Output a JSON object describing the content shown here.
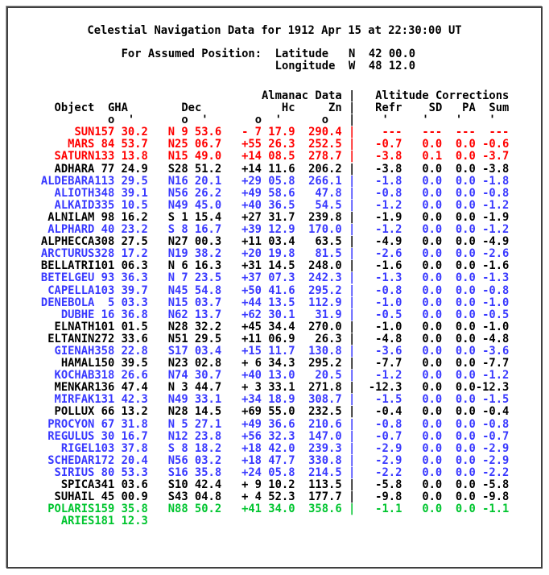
{
  "window": {
    "title": "Celestial Navigation Data for 1912 Apr 15 at 22:30:00 UT"
  },
  "assumed_position": {
    "label": "For Assumed Position:",
    "latitude_label": "Latitude",
    "latitude_value": "N  42 00.0",
    "longitude_label": "Longitude",
    "longitude_value": "W  48 12.0"
  },
  "colors": {
    "red": "#ff0000",
    "blue": "#3939ff",
    "green": "#00c52f",
    "black": "#000000"
  },
  "table": {
    "group_left": "Almanac Data",
    "group_right": "Altitude Corrections",
    "bar": "|",
    "header_cells": [
      "Object",
      "  GHA   ",
      "     Dec   ",
      "         Hc",
      "     Zn",
      "|",
      "   Refr",
      "    SD",
      "   PA",
      "  Sum"
    ],
    "units_cells": [
      "",
      "  o  '  ",
      "     o  '  ",
      "     o  '  ",
      "    o  ",
      "|",
      "    '  ",
      "   '  ",
      "  '  ",
      "  '  "
    ],
    "rows": [
      {
        "name": "SUN",
        "gha": "157 30.2",
        "dec": "N 9 53.6",
        "hc": "- 7 17.9",
        "zn": "290.4",
        "bar": "|",
        "refr": "---",
        "sd": "---",
        "pa": "---",
        "sum": "---",
        "color": "red"
      },
      {
        "name": "MARS",
        "gha": "84 53.7",
        "dec": "N25 06.7",
        "hc": "+55 26.3",
        "zn": "252.5",
        "bar": "|",
        "refr": "-0.7",
        "sd": "0.0",
        "pa": "0.0",
        "sum": "-0.6",
        "color": "red"
      },
      {
        "name": "SATURN",
        "gha": "133 13.8",
        "dec": "N15 49.0",
        "hc": "+14 08.5",
        "zn": "278.7",
        "bar": "|",
        "refr": "-3.8",
        "sd": "0.1",
        "pa": "0.0",
        "sum": "-3.7",
        "color": "red"
      },
      {
        "name": "ADHARA",
        "gha": "77 24.9",
        "dec": "S28 51.2",
        "hc": "+14 11.6",
        "zn": "206.2",
        "bar": "|",
        "refr": "-3.8",
        "sd": "0.0",
        "pa": "0.0",
        "sum": "-3.8",
        "color": "black"
      },
      {
        "name": "ALDEBARA",
        "gha": "113 29.5",
        "dec": "N16 20.1",
        "hc": "+29 05.8",
        "zn": "266.1",
        "bar": "|",
        "refr": "-1.8",
        "sd": "0.0",
        "pa": "0.0",
        "sum": "-1.8",
        "color": "blue"
      },
      {
        "name": "ALIOTH",
        "gha": "348 39.1",
        "dec": "N56 26.2",
        "hc": "+49 58.6",
        "zn": "47.8",
        "bar": "|",
        "refr": "-0.8",
        "sd": "0.0",
        "pa": "0.0",
        "sum": "-0.8",
        "color": "blue"
      },
      {
        "name": "ALKAID",
        "gha": "335 10.5",
        "dec": "N49 45.0",
        "hc": "+40 36.5",
        "zn": "54.5",
        "bar": "|",
        "refr": "-1.2",
        "sd": "0.0",
        "pa": "0.0",
        "sum": "-1.2",
        "color": "blue"
      },
      {
        "name": "ALNILAM",
        "gha": "98 16.2",
        "dec": "S 1 15.4",
        "hc": "+27 31.7",
        "zn": "239.8",
        "bar": "|",
        "refr": "-1.9",
        "sd": "0.0",
        "pa": "0.0",
        "sum": "-1.9",
        "color": "black"
      },
      {
        "name": "ALPHARD",
        "gha": "40 23.2",
        "dec": "S 8 16.7",
        "hc": "+39 12.9",
        "zn": "170.0",
        "bar": "|",
        "refr": "-1.2",
        "sd": "0.0",
        "pa": "0.0",
        "sum": "-1.2",
        "color": "blue"
      },
      {
        "name": "ALPHECCA",
        "gha": "308 27.5",
        "dec": "N27 00.3",
        "hc": "+11 03.4",
        "zn": "63.5",
        "bar": "|",
        "refr": "-4.9",
        "sd": "0.0",
        "pa": "0.0",
        "sum": "-4.9",
        "color": "black"
      },
      {
        "name": "ARCTURUS",
        "gha": "328 17.2",
        "dec": "N19 38.2",
        "hc": "+20 19.8",
        "zn": "81.5",
        "bar": "|",
        "refr": "-2.6",
        "sd": "0.0",
        "pa": "0.0",
        "sum": "-2.6",
        "color": "blue"
      },
      {
        "name": "BELLATRI",
        "gha": "101 06.3",
        "dec": "N 6 16.3",
        "hc": "+31 14.5",
        "zn": "248.0",
        "bar": "|",
        "refr": "-1.6",
        "sd": "0.0",
        "pa": "0.0",
        "sum": "-1.6",
        "color": "black"
      },
      {
        "name": "BETELGEU",
        "gha": "93 36.3",
        "dec": "N 7 23.5",
        "hc": "+37 07.3",
        "zn": "242.3",
        "bar": "|",
        "refr": "-1.3",
        "sd": "0.0",
        "pa": "0.0",
        "sum": "-1.3",
        "color": "blue"
      },
      {
        "name": "CAPELLA",
        "gha": "103 39.7",
        "dec": "N45 54.8",
        "hc": "+50 41.6",
        "zn": "295.2",
        "bar": "|",
        "refr": "-0.8",
        "sd": "0.0",
        "pa": "0.0",
        "sum": "-0.8",
        "color": "blue"
      },
      {
        "name": "DENEBOLA",
        "gha": "5 03.3",
        "dec": "N15 03.7",
        "hc": "+44 13.5",
        "zn": "112.9",
        "bar": "|",
        "refr": "-1.0",
        "sd": "0.0",
        "pa": "0.0",
        "sum": "-1.0",
        "color": "blue"
      },
      {
        "name": "DUBHE",
        "gha": "16 36.8",
        "dec": "N62 13.7",
        "hc": "+62 30.1",
        "zn": "31.9",
        "bar": "|",
        "refr": "-0.5",
        "sd": "0.0",
        "pa": "0.0",
        "sum": "-0.5",
        "color": "blue"
      },
      {
        "name": "ELNATH",
        "gha": "101 01.5",
        "dec": "N28 32.2",
        "hc": "+45 34.4",
        "zn": "270.0",
        "bar": "|",
        "refr": "-1.0",
        "sd": "0.0",
        "pa": "0.0",
        "sum": "-1.0",
        "color": "black"
      },
      {
        "name": "ELTANIN",
        "gha": "272 33.6",
        "dec": "N51 29.5",
        "hc": "+11 06.9",
        "zn": "26.3",
        "bar": "|",
        "refr": "-4.8",
        "sd": "0.0",
        "pa": "0.0",
        "sum": "-4.8",
        "color": "black"
      },
      {
        "name": "GIENAH",
        "gha": "358 22.8",
        "dec": "S17 03.4",
        "hc": "+15 11.7",
        "zn": "130.8",
        "bar": "|",
        "refr": "-3.6",
        "sd": "0.0",
        "pa": "0.0",
        "sum": "-3.6",
        "color": "blue"
      },
      {
        "name": "HAMAL",
        "gha": "150 39.5",
        "dec": "N23 02.8",
        "hc": "+ 6 34.3",
        "zn": "295.2",
        "bar": "|",
        "refr": "-7.7",
        "sd": "0.0",
        "pa": "0.0",
        "sum": "-7.7",
        "color": "black"
      },
      {
        "name": "KOCHAB",
        "gha": "318 26.6",
        "dec": "N74 30.7",
        "hc": "+40 13.0",
        "zn": "20.5",
        "bar": "|",
        "refr": "-1.2",
        "sd": "0.0",
        "pa": "0.0",
        "sum": "-1.2",
        "color": "blue"
      },
      {
        "name": "MENKAR",
        "gha": "136 47.4",
        "dec": "N 3 44.7",
        "hc": "+ 3 33.1",
        "zn": "271.8",
        "bar": "|",
        "refr": "-12.3",
        "sd": "0.0",
        "pa": "0.0",
        "sum": "-12.3",
        "color": "black"
      },
      {
        "name": "MIRFAK",
        "gha": "131 42.3",
        "dec": "N49 33.1",
        "hc": "+34 18.9",
        "zn": "308.7",
        "bar": "|",
        "refr": "-1.5",
        "sd": "0.0",
        "pa": "0.0",
        "sum": "-1.5",
        "color": "blue"
      },
      {
        "name": "POLLUX",
        "gha": "66 13.2",
        "dec": "N28 14.5",
        "hc": "+69 55.0",
        "zn": "232.5",
        "bar": "|",
        "refr": "-0.4",
        "sd": "0.0",
        "pa": "0.0",
        "sum": "-0.4",
        "color": "black"
      },
      {
        "name": "PROCYON",
        "gha": "67 31.8",
        "dec": "N 5 27.1",
        "hc": "+49 36.6",
        "zn": "210.6",
        "bar": "|",
        "refr": "-0.8",
        "sd": "0.0",
        "pa": "0.0",
        "sum": "-0.8",
        "color": "blue"
      },
      {
        "name": "REGULUS",
        "gha": "30 16.7",
        "dec": "N12 23.8",
        "hc": "+56 32.3",
        "zn": "147.0",
        "bar": "|",
        "refr": "-0.7",
        "sd": "0.0",
        "pa": "0.0",
        "sum": "-0.7",
        "color": "blue"
      },
      {
        "name": "RIGEL",
        "gha": "103 37.8",
        "dec": "S 8 18.2",
        "hc": "+18 42.0",
        "zn": "239.3",
        "bar": "|",
        "refr": "-2.9",
        "sd": "0.0",
        "pa": "0.0",
        "sum": "-2.9",
        "color": "blue"
      },
      {
        "name": "SCHEDAR",
        "gha": "172 20.4",
        "dec": "N56 03.2",
        "hc": "+18 47.7",
        "zn": "330.8",
        "bar": "|",
        "refr": "-2.9",
        "sd": "0.0",
        "pa": "0.0",
        "sum": "-2.9",
        "color": "blue"
      },
      {
        "name": "SIRIUS",
        "gha": "80 53.3",
        "dec": "S16 35.8",
        "hc": "+24 05.8",
        "zn": "214.5",
        "bar": "|",
        "refr": "-2.2",
        "sd": "0.0",
        "pa": "0.0",
        "sum": "-2.2",
        "color": "blue"
      },
      {
        "name": "SPICA",
        "gha": "341 03.6",
        "dec": "S10 42.4",
        "hc": "+ 9 10.2",
        "zn": "113.5",
        "bar": "|",
        "refr": "-5.8",
        "sd": "0.0",
        "pa": "0.0",
        "sum": "-5.8",
        "color": "black"
      },
      {
        "name": "SUHAIL",
        "gha": "45 00.9",
        "dec": "S43 04.8",
        "hc": "+ 4 52.3",
        "zn": "177.7",
        "bar": "|",
        "refr": "-9.8",
        "sd": "0.0",
        "pa": "0.0",
        "sum": "-9.8",
        "color": "black"
      },
      {
        "name": "POLARIS",
        "gha": "159 35.8",
        "dec": "N88 50.2",
        "hc": "+41 34.0",
        "zn": "358.6",
        "bar": "|",
        "refr": "-1.1",
        "sd": "0.0",
        "pa": "0.0",
        "sum": "-1.1",
        "color": "green"
      },
      {
        "name": "ARIES",
        "gha": "181 12.3",
        "dec": "",
        "hc": "",
        "zn": "",
        "bar": "",
        "refr": "",
        "sd": "",
        "pa": "",
        "sum": "",
        "color": "green"
      }
    ]
  }
}
